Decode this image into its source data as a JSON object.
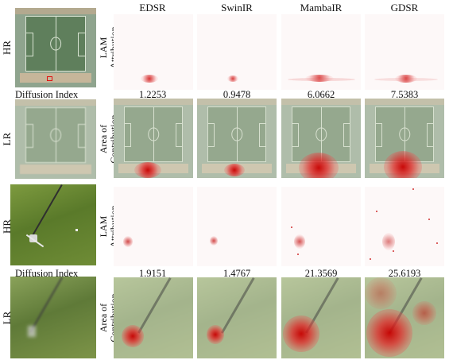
{
  "columns": [
    "EDSR",
    "SwinIR",
    "MambaIR",
    "GDSR"
  ],
  "rows": [
    {
      "left_top": "HR",
      "left_bottom": "LR",
      "left_caption": "Diffusion Index",
      "label_top": [
        "LAM",
        "Attribution"
      ],
      "label_bottom": [
        "Area of",
        "Contribution"
      ],
      "diffusion_index": [
        "1.2253",
        "0.9478",
        "6.0662",
        "7.5383"
      ]
    },
    {
      "left_top": "HR",
      "left_bottom": "LR",
      "left_caption": "Diffusion Index",
      "label_top": [
        "LAM",
        "Attribution"
      ],
      "label_bottom": [
        "Area of",
        "Contribution"
      ],
      "diffusion_index": [
        "1.9151",
        "1.4767",
        "21.3569",
        "25.6193"
      ]
    }
  ],
  "colors": {
    "heat": "#d01818",
    "attribution_bg": "#fdf8f8"
  }
}
